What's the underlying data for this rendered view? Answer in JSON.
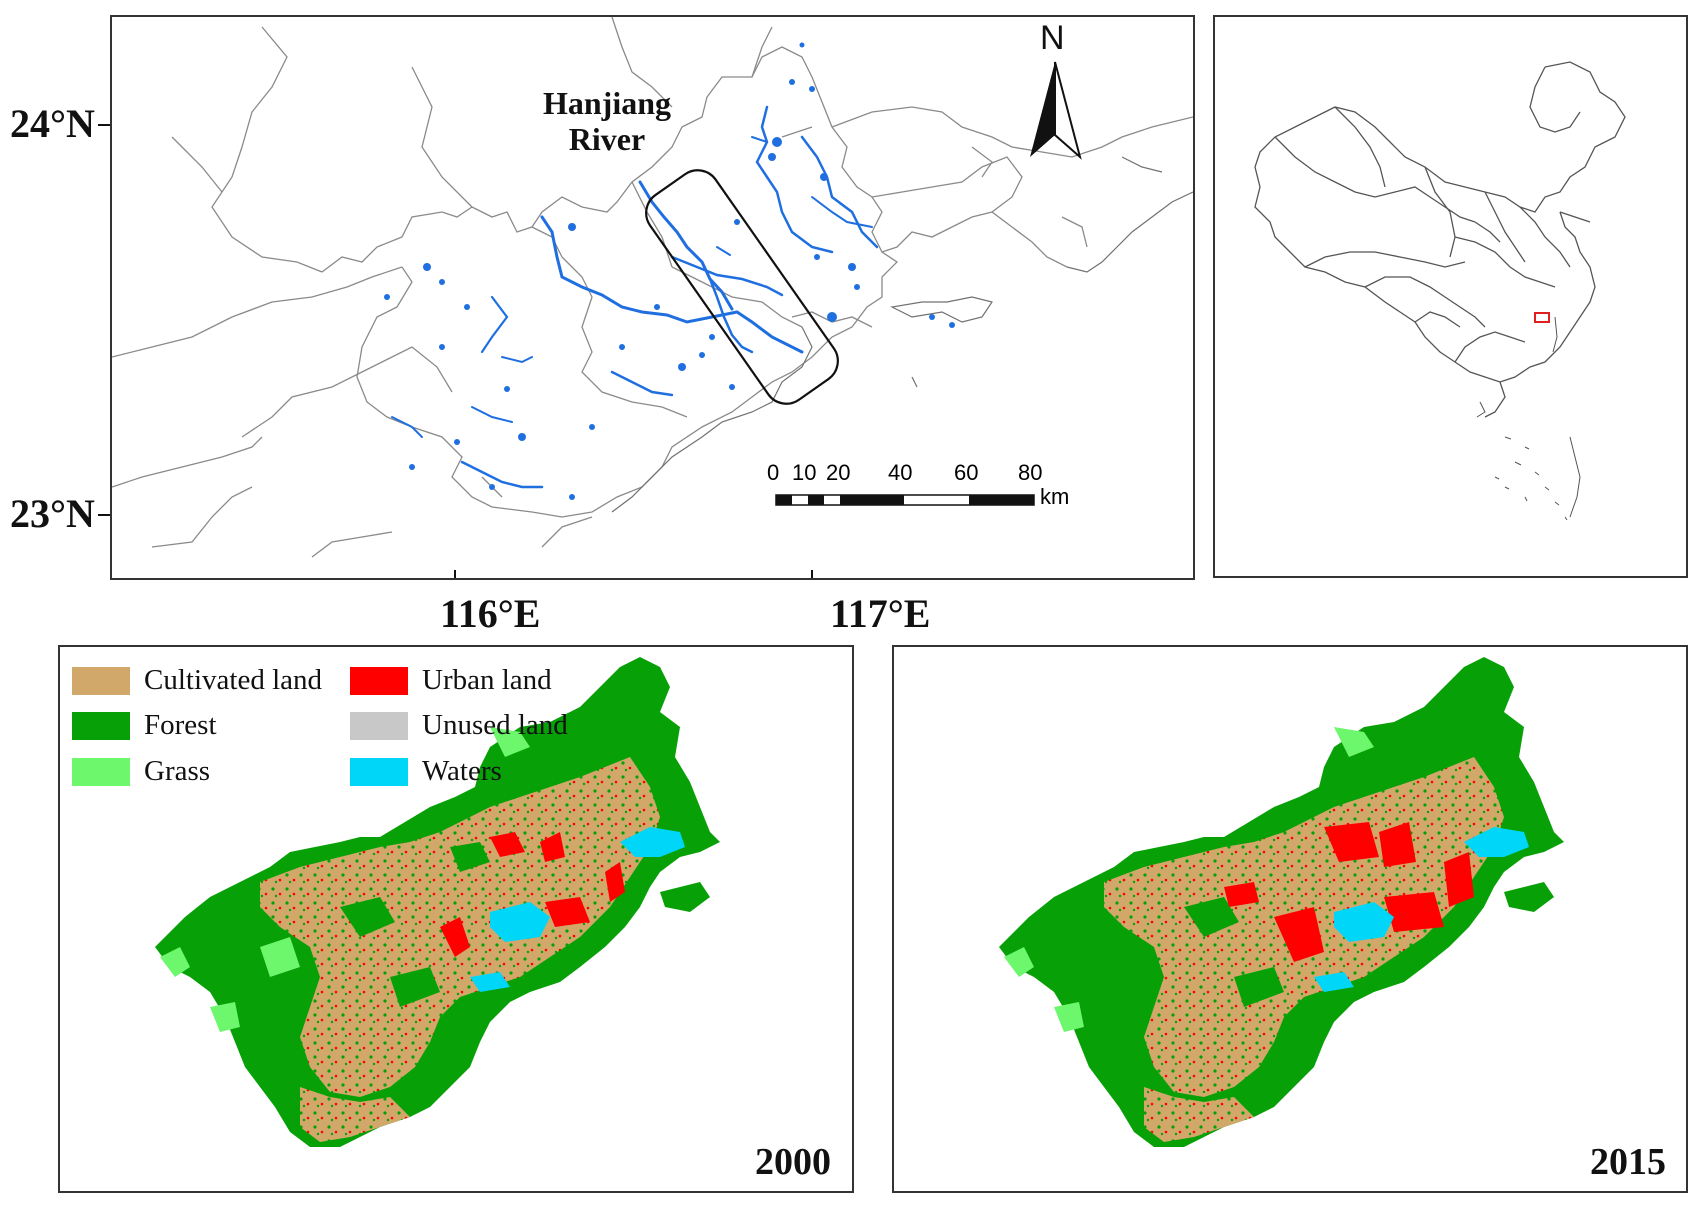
{
  "location_map": {
    "river_label_line1": "Hanjiang",
    "river_label_line2": "River",
    "north_label": "N",
    "lat_labels": [
      "24°N",
      "23°N"
    ],
    "lon_labels": [
      "116°E",
      "117°E"
    ],
    "scale_ticks": [
      "0",
      "10",
      "20",
      "40",
      "60",
      "80"
    ],
    "scale_unit": "km",
    "water_color": "#1f6fe0"
  },
  "inset_map": {
    "highlight_color": "#e02020"
  },
  "legend": {
    "items": [
      {
        "label": "Cultivated land",
        "color": "#d2a86a"
      },
      {
        "label": "Urban land",
        "color": "#ff0000"
      },
      {
        "label": "Forest",
        "color": "#07a007"
      },
      {
        "label": "Unused land",
        "color": "#c8c8c8"
      },
      {
        "label": "Grass",
        "color": "#6cf76c"
      },
      {
        "label": "Waters",
        "color": "#00d6f8"
      }
    ]
  },
  "landuse_maps": [
    {
      "year": "2000"
    },
    {
      "year": "2015"
    }
  ]
}
